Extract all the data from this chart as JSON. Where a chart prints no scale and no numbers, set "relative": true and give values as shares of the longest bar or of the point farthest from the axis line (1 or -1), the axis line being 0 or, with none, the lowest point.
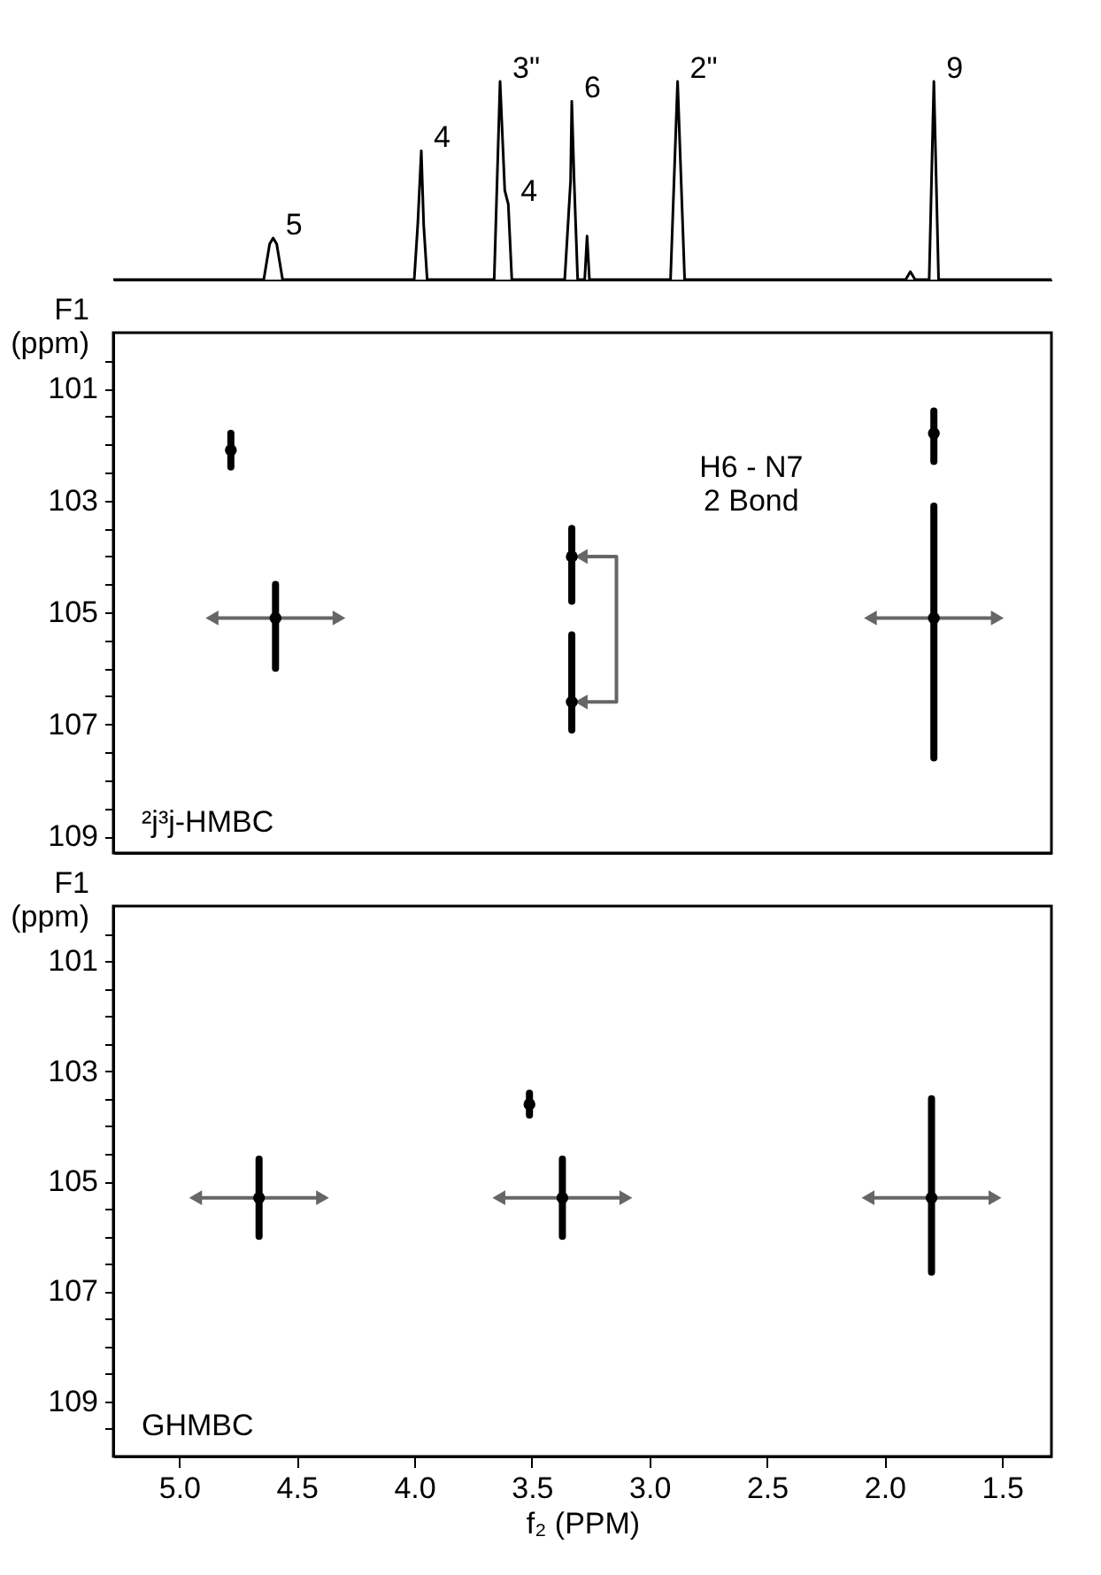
{
  "chart_data": [
    {
      "type": "line",
      "relative": true,
      "tick_labels": false,
      "color": "#000000",
      "xlim": [
        5.28,
        1.29
      ],
      "x": [
        5.28,
        4.64,
        4.615,
        4.6,
        4.585,
        4.56,
        4.0,
        3.985,
        3.97,
        3.96,
        3.945,
        3.66,
        3.635,
        3.615,
        3.6,
        3.585,
        3.36,
        3.335,
        3.33,
        3.32,
        3.305,
        3.275,
        3.265,
        3.255,
        2.91,
        2.88,
        2.85,
        1.91,
        1.89,
        1.87,
        1.81,
        1.79,
        1.77,
        1.29
      ],
      "values": [
        0,
        0,
        0.18,
        0.21,
        0.18,
        0,
        0,
        0.28,
        0.65,
        0.28,
        0,
        0,
        1.0,
        0.45,
        0.38,
        0,
        0,
        0.5,
        0.9,
        0.5,
        0,
        0,
        0.22,
        0,
        0,
        1.0,
        0,
        0,
        0.04,
        0,
        0,
        1.0,
        0,
        0
      ],
      "annotations": [
        {
          "text": "5",
          "x": 4.6,
          "y": 0.21
        },
        {
          "text": "4",
          "x": 3.97,
          "y": 0.65
        },
        {
          "text": "3\"",
          "x": 3.635,
          "y": 1.0
        },
        {
          "text": "4",
          "x": 3.6,
          "y": 0.38
        },
        {
          "text": "6",
          "x": 3.33,
          "y": 0.9
        },
        {
          "text": "2\"",
          "x": 2.88,
          "y": 1.0
        },
        {
          "text": "9",
          "x": 1.79,
          "y": 1.0
        }
      ]
    },
    {
      "type": "scatter",
      "marker": "circle",
      "tick_labels": "y",
      "ylabel": "F1\n(ppm)",
      "xlim": [
        5.28,
        1.29
      ],
      "ylim": [
        109.3,
        100
      ],
      "yticks": [
        101,
        103,
        105,
        107,
        109,
        {
          "value": 100.5,
          "label": null
        },
        {
          "value": 101.5,
          "label": null
        },
        {
          "value": 102,
          "label": null
        },
        {
          "value": 102.5,
          "label": null
        },
        {
          "value": 103.5,
          "label": null
        },
        {
          "value": 104,
          "label": null
        },
        {
          "value": 104.5,
          "label": null
        },
        {
          "value": 105.5,
          "label": null
        },
        {
          "value": 106,
          "label": null
        },
        {
          "value": 106.5,
          "label": null
        },
        {
          "value": 107.5,
          "label": null
        },
        {
          "value": 108,
          "label": null
        },
        {
          "value": 108.5,
          "label": null
        }
      ],
      "series": [
        {
          "color": "#000000",
          "x": [
            4.59,
            1.79
          ],
          "values": [
            105.1,
            105.1
          ],
          "errors": [
            [
              104.5,
              106.0
            ],
            [
              103.1,
              107.6
            ]
          ]
        },
        {
          "color": "#000000",
          "x": [
            3.33,
            3.33
          ],
          "values": [
            104.0,
            106.6
          ],
          "errors": [
            [
              103.5,
              104.8
            ],
            [
              105.4,
              107.1
            ]
          ]
        },
        {
          "color": "#000000",
          "x": [
            4.78,
            1.79
          ],
          "values": [
            102.1,
            101.8
          ],
          "errors": [
            [
              101.8,
              102.4
            ],
            [
              101.4,
              102.3
            ]
          ]
        }
      ],
      "annotations": [
        "H6 - N7\n2 Bond",
        "²j³j-HMBC"
      ]
    },
    {
      "type": "scatter",
      "marker": "circle",
      "ylabel": "F1\n(ppm)",
      "xlabel": "f₂ (PPM)",
      "xlim": [
        5.28,
        1.29
      ],
      "ylim": [
        110,
        100
      ],
      "xticks": [
        {
          "value": 5,
          "label": "5.0"
        },
        {
          "value": 4.5,
          "label": "4.5"
        },
        {
          "value": 4,
          "label": "4.0"
        },
        {
          "value": 3.5,
          "label": "3.5"
        },
        {
          "value": 3,
          "label": "3.0"
        },
        {
          "value": 2.5,
          "label": "2.5"
        },
        {
          "value": 2,
          "label": "2.0"
        },
        {
          "value": 1.5,
          "label": "1.5"
        }
      ],
      "yticks": [
        101,
        103,
        105,
        107,
        109,
        {
          "value": 100.5,
          "label": null
        },
        {
          "value": 101.5,
          "label": null
        },
        {
          "value": 102,
          "label": null
        },
        {
          "value": 102.5,
          "label": null
        },
        {
          "value": 103.5,
          "label": null
        },
        {
          "value": 104,
          "label": null
        },
        {
          "value": 104.5,
          "label": null
        },
        {
          "value": 105.5,
          "label": null
        },
        {
          "value": 106,
          "label": null
        },
        {
          "value": 106.5,
          "label": null
        },
        {
          "value": 107.5,
          "label": null
        },
        {
          "value": 108,
          "label": null
        },
        {
          "value": 108.5,
          "label": null
        },
        {
          "value": 109.5,
          "label": null
        }
      ],
      "series": [
        {
          "color": "#000000",
          "x": [
            4.66,
            3.37,
            1.8
          ],
          "values": [
            105.3,
            105.3,
            105.3
          ],
          "errors": [
            [
              104.6,
              106.0
            ],
            [
              104.6,
              106.0
            ],
            [
              103.5,
              106.65
            ]
          ]
        },
        {
          "color": "#000000",
          "x": [
            3.51
          ],
          "values": [
            103.6
          ],
          "errors": [
            [
              103.4,
              103.8
            ]
          ]
        }
      ],
      "annotations": [
        "GHMBC"
      ]
    }
  ]
}
